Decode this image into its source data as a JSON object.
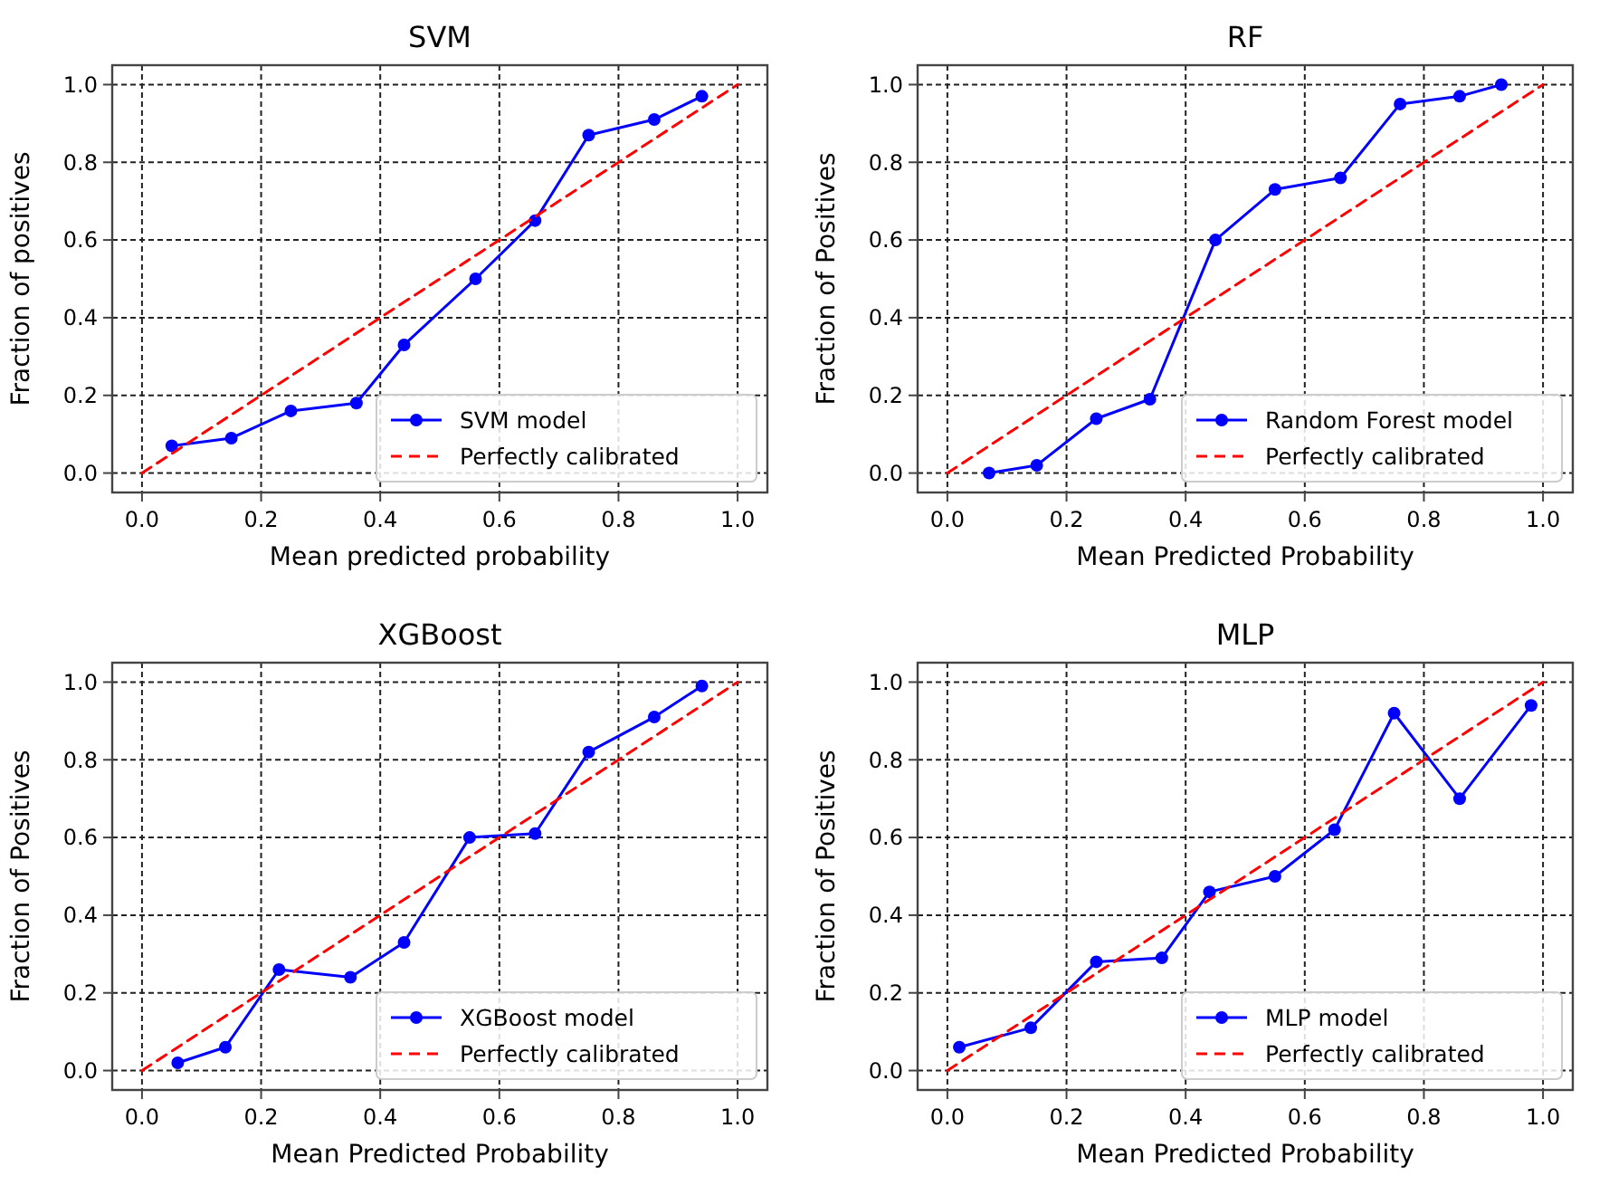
{
  "chart_data": [
    {
      "type": "line",
      "title": "SVM",
      "xlabel": "Mean predicted probability",
      "ylabel": "Fraction of positives",
      "xlim": [
        -0.05,
        1.05
      ],
      "ylim": [
        -0.05,
        1.05
      ],
      "xticks": [
        {
          "value": 0,
          "label": "0.0"
        },
        {
          "value": 0.2,
          "label": "0.2"
        },
        {
          "value": 0.4,
          "label": "0.4"
        },
        {
          "value": 0.6,
          "label": "0.6"
        },
        {
          "value": 0.8,
          "label": "0.8"
        },
        {
          "value": 1,
          "label": "1.0"
        }
      ],
      "yticks": [
        {
          "value": 0,
          "label": "0.0"
        },
        {
          "value": 0.2,
          "label": "0.2"
        },
        {
          "value": 0.4,
          "label": "0.4"
        },
        {
          "value": 0.6,
          "label": "0.6"
        },
        {
          "value": 0.8,
          "label": "0.8"
        },
        {
          "value": 1,
          "label": "1.0"
        }
      ],
      "grid": true,
      "legend": "bottom right",
      "series": [
        {
          "name": "SVM model",
          "color": "#0000ff",
          "marker": "circle",
          "line_style": "solid",
          "x": [
            0.05,
            0.15,
            0.25,
            0.36,
            0.44,
            0.56,
            0.66,
            0.75,
            0.86,
            0.94
          ],
          "values": [
            0.07,
            0.09,
            0.16,
            0.18,
            0.33,
            0.5,
            0.65,
            0.87,
            0.91,
            0.97
          ]
        },
        {
          "name": "Perfectly calibrated",
          "color": "#ff0000",
          "marker": "none",
          "line_style": "dashed",
          "x": [
            0,
            1
          ],
          "values": [
            0,
            1
          ]
        }
      ]
    },
    {
      "type": "line",
      "title": "RF",
      "xlabel": "Mean Predicted Probability",
      "ylabel": "Fraction of Positives",
      "xlim": [
        -0.05,
        1.05
      ],
      "ylim": [
        -0.05,
        1.05
      ],
      "xticks": [
        {
          "value": 0,
          "label": "0.0"
        },
        {
          "value": 0.2,
          "label": "0.2"
        },
        {
          "value": 0.4,
          "label": "0.4"
        },
        {
          "value": 0.6,
          "label": "0.6"
        },
        {
          "value": 0.8,
          "label": "0.8"
        },
        {
          "value": 1,
          "label": "1.0"
        }
      ],
      "yticks": [
        {
          "value": 0,
          "label": "0.0"
        },
        {
          "value": 0.2,
          "label": "0.2"
        },
        {
          "value": 0.4,
          "label": "0.4"
        },
        {
          "value": 0.6,
          "label": "0.6"
        },
        {
          "value": 0.8,
          "label": "0.8"
        },
        {
          "value": 1,
          "label": "1.0"
        }
      ],
      "grid": true,
      "legend": "bottom right",
      "series": [
        {
          "name": "Random Forest model",
          "color": "#0000ff",
          "marker": "circle",
          "line_style": "solid",
          "x": [
            0.07,
            0.15,
            0.25,
            0.34,
            0.45,
            0.55,
            0.66,
            0.76,
            0.86,
            0.93
          ],
          "values": [
            0,
            0.02,
            0.14,
            0.19,
            0.6,
            0.73,
            0.76,
            0.95,
            0.97,
            1
          ]
        },
        {
          "name": "Perfectly calibrated",
          "color": "#ff0000",
          "marker": "none",
          "line_style": "dashed",
          "x": [
            0,
            1
          ],
          "values": [
            0,
            1
          ]
        }
      ]
    },
    {
      "type": "line",
      "title": "XGBoost",
      "xlabel": "Mean Predicted Probability",
      "ylabel": "Fraction of Positives",
      "xlim": [
        -0.05,
        1.05
      ],
      "ylim": [
        -0.05,
        1.05
      ],
      "xticks": [
        {
          "value": 0,
          "label": "0.0"
        },
        {
          "value": 0.2,
          "label": "0.2"
        },
        {
          "value": 0.4,
          "label": "0.4"
        },
        {
          "value": 0.6,
          "label": "0.6"
        },
        {
          "value": 0.8,
          "label": "0.8"
        },
        {
          "value": 1,
          "label": "1.0"
        }
      ],
      "yticks": [
        {
          "value": 0,
          "label": "0.0"
        },
        {
          "value": 0.2,
          "label": "0.2"
        },
        {
          "value": 0.4,
          "label": "0.4"
        },
        {
          "value": 0.6,
          "label": "0.6"
        },
        {
          "value": 0.8,
          "label": "0.8"
        },
        {
          "value": 1,
          "label": "1.0"
        }
      ],
      "grid": true,
      "legend": "bottom right",
      "series": [
        {
          "name": "XGBoost model",
          "color": "#0000ff",
          "marker": "circle",
          "line_style": "solid",
          "x": [
            0.06,
            0.14,
            0.23,
            0.35,
            0.44,
            0.55,
            0.66,
            0.75,
            0.86,
            0.94
          ],
          "values": [
            0.02,
            0.06,
            0.26,
            0.24,
            0.33,
            0.6,
            0.61,
            0.82,
            0.91,
            0.99
          ]
        },
        {
          "name": "Perfectly calibrated",
          "color": "#ff0000",
          "marker": "none",
          "line_style": "dashed",
          "x": [
            0,
            1
          ],
          "values": [
            0,
            1
          ]
        }
      ]
    },
    {
      "type": "line",
      "title": "MLP",
      "xlabel": "Mean Predicted Probability",
      "ylabel": "Fraction of Positives",
      "xlim": [
        -0.05,
        1.05
      ],
      "ylim": [
        -0.05,
        1.05
      ],
      "xticks": [
        {
          "value": 0,
          "label": "0.0"
        },
        {
          "value": 0.2,
          "label": "0.2"
        },
        {
          "value": 0.4,
          "label": "0.4"
        },
        {
          "value": 0.6,
          "label": "0.6"
        },
        {
          "value": 0.8,
          "label": "0.8"
        },
        {
          "value": 1,
          "label": "1.0"
        }
      ],
      "yticks": [
        {
          "value": 0,
          "label": "0.0"
        },
        {
          "value": 0.2,
          "label": "0.2"
        },
        {
          "value": 0.4,
          "label": "0.4"
        },
        {
          "value": 0.6,
          "label": "0.6"
        },
        {
          "value": 0.8,
          "label": "0.8"
        },
        {
          "value": 1,
          "label": "1.0"
        }
      ],
      "grid": true,
      "legend": "bottom right",
      "series": [
        {
          "name": "MLP model",
          "color": "#0000ff",
          "marker": "circle",
          "line_style": "solid",
          "x": [
            0.02,
            0.14,
            0.25,
            0.36,
            0.44,
            0.55,
            0.65,
            0.75,
            0.86,
            0.98
          ],
          "values": [
            0.06,
            0.11,
            0.28,
            0.29,
            0.46,
            0.5,
            0.62,
            0.92,
            0.7,
            0.94
          ]
        },
        {
          "name": "Perfectly calibrated",
          "color": "#ff0000",
          "marker": "none",
          "line_style": "dashed",
          "x": [
            0,
            1
          ],
          "values": [
            0,
            1
          ]
        }
      ]
    }
  ]
}
